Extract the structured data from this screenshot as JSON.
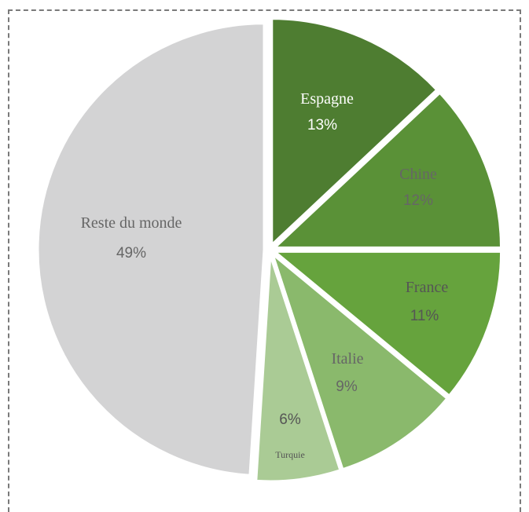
{
  "chart_data": {
    "type": "pie",
    "title": "",
    "slices": [
      {
        "label": "Espagne",
        "value": 13,
        "value_label": "13%",
        "color": "#4e7d31",
        "text_color": "#ffffff"
      },
      {
        "label": "Chine",
        "value": 12,
        "value_label": "12%",
        "color": "#5a9137",
        "text_color": "#666666"
      },
      {
        "label": "France",
        "value": 11,
        "value_label": "11%",
        "color": "#66a33d",
        "text_color": "#555555"
      },
      {
        "label": "Italie",
        "value": 9,
        "value_label": "9%",
        "color": "#8ab96c",
        "text_color": "#666666"
      },
      {
        "label": "Turquie",
        "value": 6,
        "value_label": "6%",
        "color": "#aacb95",
        "text_color": "#555555"
      },
      {
        "label": "Reste du monde",
        "value": 49,
        "value_label": "49%",
        "color": "#d3d3d4",
        "text_color": "#666666"
      }
    ]
  }
}
